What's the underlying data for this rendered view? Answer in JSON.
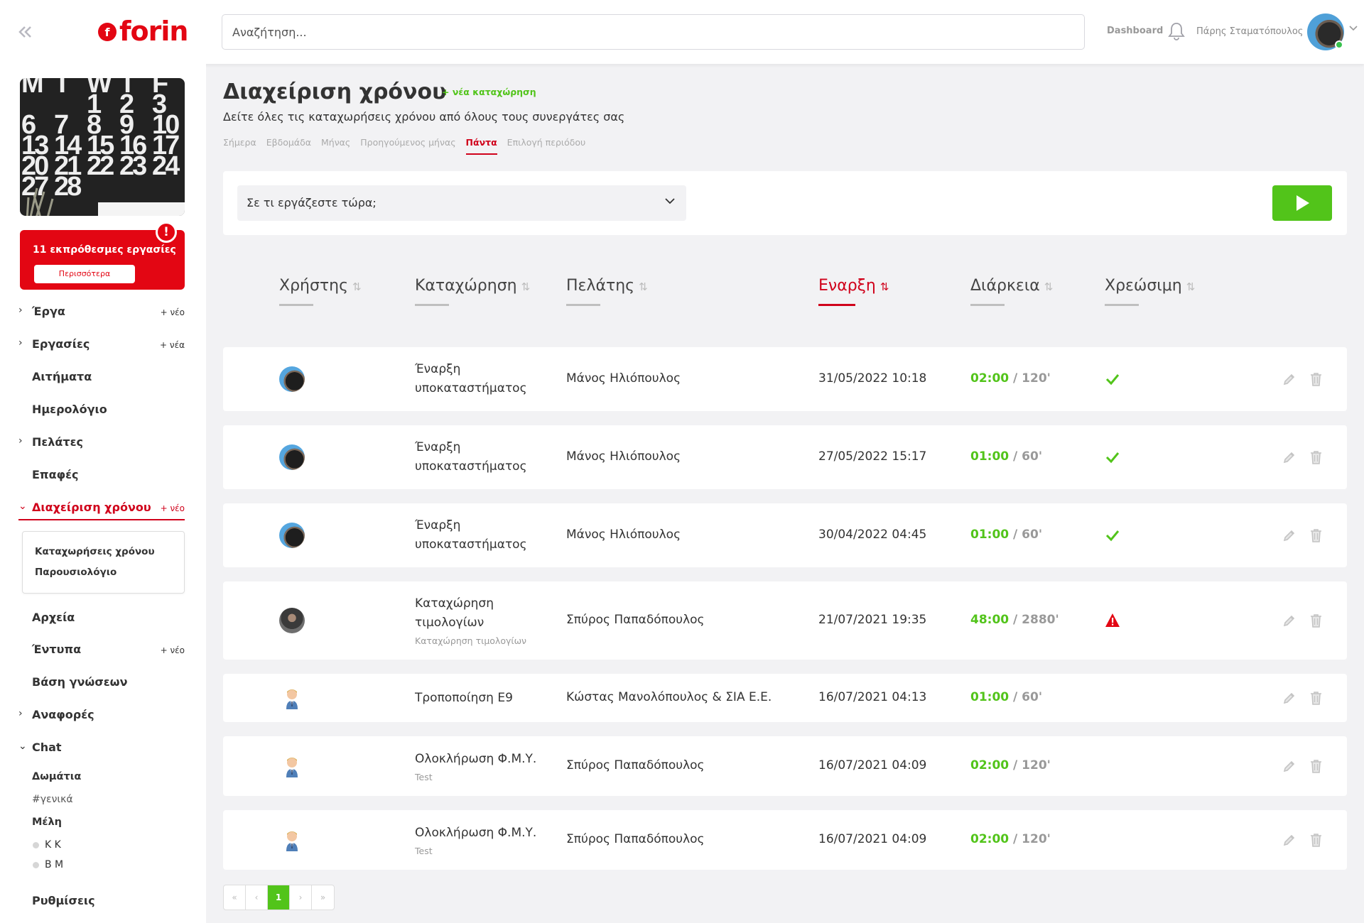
{
  "header": {
    "logo_text": "forin",
    "logo_mark": "f",
    "search_placeholder": "Αναζήτηση...",
    "dashboard_link": "Dashboard",
    "user_name": "Πάρης Σταματόπουλος",
    "icons": [
      "double-chevron-left-icon",
      "bell-icon",
      "chevron-down-icon"
    ]
  },
  "sidebar": {
    "calendar_image_text": [
      "M",
      "T",
      "W",
      "T",
      "F",
      "",
      "",
      "1",
      "2",
      "3",
      "6",
      "7",
      "8",
      "9",
      "10",
      "13",
      "14",
      "15",
      "16",
      "17",
      "20",
      "21",
      "22",
      "23",
      "24",
      "27",
      "28",
      "",
      "",
      ""
    ],
    "alert": {
      "text": "11 εκπρόθεσμες εργασίες",
      "button": "Περισσότερα",
      "badge": "!"
    },
    "nav": [
      {
        "label": "Έργα",
        "chevron": "›",
        "new": "+ νέο"
      },
      {
        "label": "Εργασίες",
        "chevron": "›",
        "new": "+ νέα"
      },
      {
        "label": "Αιτήματα",
        "chevron": "",
        "new": ""
      },
      {
        "label": "Ημερολόγιο",
        "chevron": "",
        "new": ""
      },
      {
        "label": "Πελάτες",
        "chevron": "›",
        "new": ""
      },
      {
        "label": "Επαφές",
        "chevron": "",
        "new": ""
      },
      {
        "label": "Διαχείριση χρόνου",
        "chevron": "⌄",
        "new": "+ νέο"
      },
      {
        "label": "Αρχεία",
        "chevron": "",
        "new": ""
      },
      {
        "label": "Έντυπα",
        "chevron": "",
        "new": "+ νέο"
      },
      {
        "label": "Βάση γνώσεων",
        "chevron": "",
        "new": ""
      },
      {
        "label": "Αναφορές",
        "chevron": "›",
        "new": ""
      },
      {
        "label": "Chat",
        "chevron": "⌄",
        "new": ""
      },
      {
        "label": "Ρυθμίσεις",
        "chevron": "",
        "new": ""
      }
    ],
    "submenu": [
      "Καταχωρήσεις χρόνου",
      "Παρουσιολόγιο"
    ],
    "chat": {
      "rooms_heading": "Δωμάτια",
      "rooms": [
        "#γενικά"
      ],
      "members_heading": "Μέλη",
      "members": [
        "Κ Κ",
        "Β Μ"
      ]
    }
  },
  "main": {
    "title": "Διαχείριση χρόνου",
    "new_entry": "+ νέα καταχώρηση",
    "subtitle": "Δείτε όλες τις καταχωρήσεις χρόνου από όλους τους συνεργάτες σας",
    "period_tabs": [
      "Σήμερα",
      "Εβδομάδα",
      "Μήνας",
      "Προηγούμενος μήνας",
      "Πάντα",
      "Επιλογή περιόδου"
    ],
    "active_period": "Πάντα",
    "tracker": {
      "placeholder": "Σε τι εργάζεστε τώρα;",
      "play_icon": "play-icon"
    },
    "columns": [
      {
        "label": "Χρήστης",
        "sort": "⇅"
      },
      {
        "label": "Καταχώρηση",
        "sort": "⇅"
      },
      {
        "label": "Πελάτης",
        "sort": "⇅"
      },
      {
        "label": "Εναρξη",
        "sort": "⇅"
      },
      {
        "label": "Διάρκεια",
        "sort": "⇅"
      },
      {
        "label": "Χρεώσιμη",
        "sort": "⇅"
      }
    ],
    "active_column": "Εναρξη",
    "rows": [
      {
        "avatar": "photo",
        "entry": [
          "Έναρξη",
          "υποκαταστήματος"
        ],
        "entry_sub": "",
        "client": "Μάνος Ηλιόπουλος",
        "start": "31/05/2022 10:18",
        "hours": "02:00",
        "minutes": "/ 120'",
        "billable": "check-icon"
      },
      {
        "avatar": "photo",
        "entry": [
          "Έναρξη",
          "υποκαταστήματος"
        ],
        "entry_sub": "",
        "client": "Μάνος Ηλιόπουλος",
        "start": "27/05/2022 15:17",
        "hours": "01:00",
        "minutes": "/ 60'",
        "billable": "check-icon"
      },
      {
        "avatar": "photo",
        "entry": [
          "Έναρξη",
          "υποκαταστήματος"
        ],
        "entry_sub": "",
        "client": "Μάνος Ηλιόπουλος",
        "start": "30/04/2022 04:45",
        "hours": "01:00",
        "minutes": "/ 60'",
        "billable": "check-icon"
      },
      {
        "avatar": "photo2",
        "entry": [
          "Καταχώρηση",
          "τιμολογίων"
        ],
        "entry_sub": "Καταχώρηση τιμολογίων",
        "client": "Σπύρος Παπαδόπουλος",
        "start": "21/07/2021 19:35",
        "hours": "48:00",
        "minutes": "/ 2880'",
        "billable": "warning-icon"
      },
      {
        "avatar": "cartoon",
        "entry": [
          "Τροποποίηση Ε9"
        ],
        "entry_sub": "",
        "client": "Κώστας Μανολόπουλος & ΣΙΑ Ε.Ε.",
        "start": "16/07/2021 04:13",
        "hours": "01:00",
        "minutes": "/ 60'",
        "billable": ""
      },
      {
        "avatar": "cartoon",
        "entry": [
          "Ολοκλήρωση Φ.Μ.Υ."
        ],
        "entry_sub": "Test",
        "client": "Σπύρος Παπαδόπουλος",
        "start": "16/07/2021 04:09",
        "hours": "02:00",
        "minutes": "/ 120'",
        "billable": ""
      },
      {
        "avatar": "cartoon",
        "entry": [
          "Ολοκλήρωση Φ.Μ.Υ."
        ],
        "entry_sub": "Test",
        "client": "Σπύρος Παπαδόπουλος",
        "start": "16/07/2021 04:09",
        "hours": "02:00",
        "minutes": "/ 120'",
        "billable": ""
      }
    ],
    "pagination": [
      "«",
      "‹",
      "1",
      "›",
      "»"
    ],
    "current_page": "1"
  },
  "colors": {
    "brand_red": "#e30613",
    "active_red": "#d0021b",
    "green": "#52c41a"
  }
}
